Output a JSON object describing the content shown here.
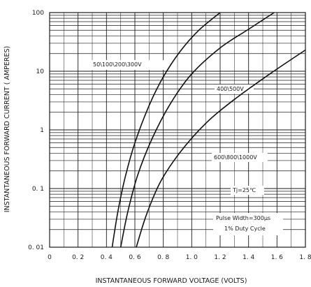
{
  "chart_data": {
    "type": "line",
    "xlabel": "INSTANTANEOUS FORWARD VOLTAGE (VOLTS)",
    "ylabel": "INSTANTANEOUS FORWARD CURRENT ( AMPERES)",
    "x_scale": "linear",
    "y_scale": "log",
    "xlim": [
      0,
      1.8
    ],
    "ylim": [
      0.01,
      100
    ],
    "grid": true,
    "x_tick_labels": [
      "0",
      "0. 2",
      "0. 4",
      "0. 6",
      "0. 8",
      "1. 0",
      "1. 2",
      "1. 4",
      "1. 6",
      "1. 8"
    ],
    "y_tick_labels": [
      "100",
      "10",
      "1",
      "0. 1",
      "0. 01"
    ],
    "series": [
      {
        "name": "50\\100\\200\\300V",
        "x": [
          0.44,
          0.48,
          0.53,
          0.6,
          0.7,
          0.8,
          0.92,
          1.05,
          1.2
        ],
        "y": [
          0.01,
          0.04,
          0.15,
          0.6,
          2.6,
          8,
          22,
          50,
          100
        ]
      },
      {
        "name": "400\\500V",
        "x": [
          0.5,
          0.55,
          0.62,
          0.72,
          0.85,
          1.0,
          1.2,
          1.4,
          1.58
        ],
        "y": [
          0.01,
          0.04,
          0.17,
          0.7,
          2.8,
          9,
          25,
          52,
          100
        ]
      },
      {
        "name": "600\\800\\1000V",
        "x": [
          0.61,
          0.68,
          0.78,
          0.92,
          1.1,
          1.3,
          1.55,
          1.8
        ],
        "y": [
          0.01,
          0.035,
          0.13,
          0.42,
          1.3,
          3.3,
          9,
          23
        ]
      }
    ],
    "annotations": {
      "label_50_300": "50\\100\\200\\300V",
      "label_400_500": "400\\500V",
      "label_600_1000": "600\\800\\1000V",
      "tj": "Tj=25℃",
      "pulse": "Pulse Width=300µs",
      "duty": "1% Duty Cycle"
    }
  }
}
